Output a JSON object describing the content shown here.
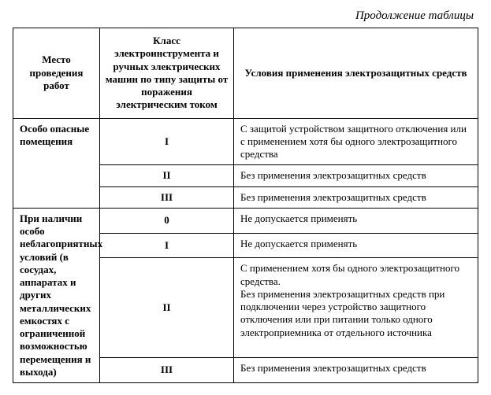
{
  "caption": "Продолжение таблицы",
  "headers": {
    "place": "Место проведения работ",
    "klass": "Класс электроинструмента и ручных электрических машин по типу защиты от поражения электрическим током",
    "cond": "Условия применения электрозащитных средств"
  },
  "group1": {
    "place": "Особо опасные помещения",
    "rows": [
      {
        "klass": "I",
        "cond": "С защитой устройством защитного отключения или с применением хотя бы одного электрозащитного средства"
      },
      {
        "klass": "II",
        "cond": "Без применения электрозащитных средств"
      },
      {
        "klass": "III",
        "cond": "Без применения электрозащитных средств"
      }
    ]
  },
  "group2": {
    "place": "При наличии особо неблагоприятных условий (в сосудах, аппаратах и других металлических емкостях с ограниченной возможностью перемещения и выхода)",
    "rows": [
      {
        "klass": "0",
        "cond": "Не допускается применять"
      },
      {
        "klass": "I",
        "cond": "Не допускается применять"
      },
      {
        "klass": "II",
        "cond": "С применением хотя бы одного электрозащитного средства.\nБез применения электрозащитных средств при подключении через устройство защитного отключения или при питании только одного электроприемника от отдельного источника"
      },
      {
        "klass": "III",
        "cond": "Без применения электрозащитных средств"
      }
    ]
  }
}
